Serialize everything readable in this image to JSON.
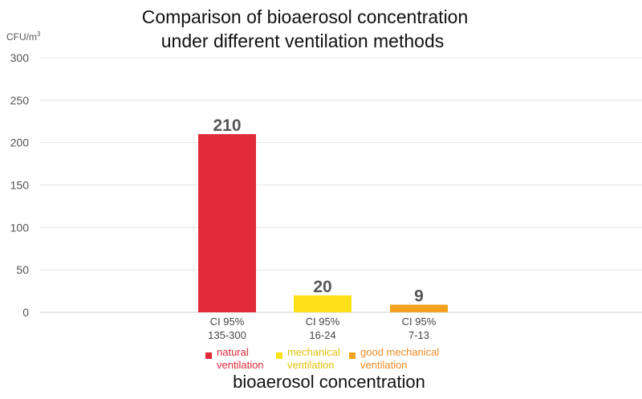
{
  "chart_data": {
    "type": "bar",
    "title_lines": [
      "Comparison of bioaerosol concentration",
      "under different ventilation methods"
    ],
    "unit_label": "CFU/m",
    "unit_sup": "3",
    "xlabel": "bioaerosol concentration",
    "ylim": [
      0,
      300
    ],
    "yticks": [
      0,
      50,
      100,
      150,
      200,
      250,
      300
    ],
    "grid": true,
    "categories": [
      "natural ventilation",
      "mechanical ventilation",
      "good mechanical ventilation"
    ],
    "values": [
      210,
      20,
      9
    ],
    "data_labels": [
      "210",
      "20",
      "9"
    ],
    "ci_prefix": "CI 95%",
    "ci_ranges": [
      "135-300",
      "16-24",
      "7-13"
    ],
    "colors": [
      "#E02A3A",
      "#FFE11A",
      "#F5A121"
    ],
    "legend": [
      {
        "lines": [
          "natural",
          "ventilation"
        ],
        "color": "#E02A3A",
        "text_color": "#E02A3A"
      },
      {
        "lines": [
          "mechanical",
          "ventilation"
        ],
        "color": "#FFE11A",
        "text_color": "#E3C20E"
      },
      {
        "lines": [
          "good mechanical",
          "ventilation"
        ],
        "color": "#F5A121",
        "text_color": "#F08A24"
      }
    ]
  }
}
